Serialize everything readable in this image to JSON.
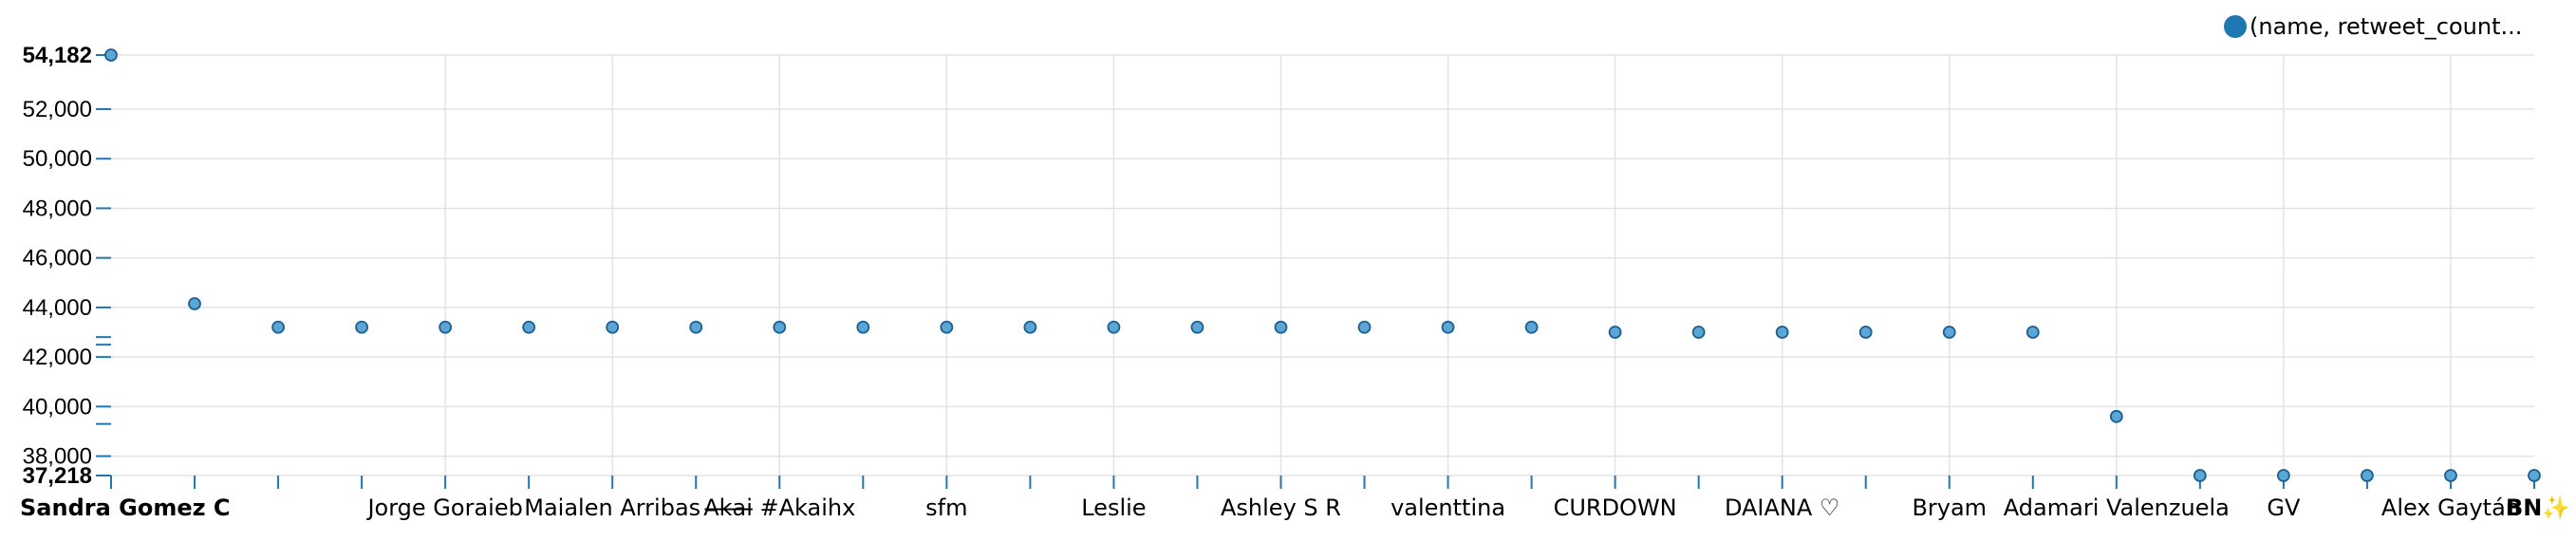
{
  "chart_data": {
    "type": "scatter",
    "title": "",
    "xlabel": "",
    "ylabel": "",
    "ylim": [
      37218,
      54182
    ],
    "grid": true,
    "legend": {
      "position": "top-right",
      "label": "(name, retweet_count..."
    },
    "y_ticks": [
      {
        "value": 54182,
        "label": "54,182",
        "bold": true
      },
      {
        "value": 52000,
        "label": "52,000"
      },
      {
        "value": 50000,
        "label": "50,000"
      },
      {
        "value": 48000,
        "label": "48,000"
      },
      {
        "value": 46000,
        "label": "46,000"
      },
      {
        "value": 44000,
        "label": "44,000"
      },
      {
        "value": 42000,
        "label": "42,000"
      },
      {
        "value": 40000,
        "label": "40,000"
      },
      {
        "value": 38000,
        "label": "38,000"
      },
      {
        "value": 37218,
        "label": "37,218",
        "bold": true
      }
    ],
    "x_labels": [
      {
        "index": 0,
        "label": "Sandra Gomez C",
        "bold": true
      },
      {
        "index": 4,
        "label": "Jorge Goraieb"
      },
      {
        "index": 6,
        "label": "Maialen Arribas"
      },
      {
        "index": 8,
        "label": "A̶k̶a̶i̶ #Akaihx"
      },
      {
        "index": 10,
        "label": "sfm"
      },
      {
        "index": 12,
        "label": "Leslie"
      },
      {
        "index": 14,
        "label": "Ashley S R"
      },
      {
        "index": 16,
        "label": "valenttina"
      },
      {
        "index": 18,
        "label": "CURDOWN"
      },
      {
        "index": 20,
        "label": "DAIANA ♡"
      },
      {
        "index": 22,
        "label": "Bryam"
      },
      {
        "index": 24,
        "label": "Adamari Valenzuela"
      },
      {
        "index": 26,
        "label": "GV"
      },
      {
        "index": 28,
        "label": "Alex Gaytán"
      },
      {
        "index": 29,
        "label": "BN✨",
        "bold": true
      }
    ],
    "series": [
      {
        "values": [
          54182,
          44150,
          43200,
          43200,
          43200,
          43200,
          43200,
          43200,
          43200,
          43200,
          43200,
          43200,
          43200,
          43200,
          43200,
          43200,
          43200,
          43200,
          43000,
          43000,
          43000,
          43000,
          43000,
          43000,
          39600,
          37218,
          37218,
          37218,
          37218,
          37218
        ]
      }
    ],
    "colors": {
      "point_fill": "#5aa6d6",
      "point_stroke": "#1f5f8f",
      "accent": "#1f77b4",
      "grid": "#e3e3e3"
    }
  }
}
